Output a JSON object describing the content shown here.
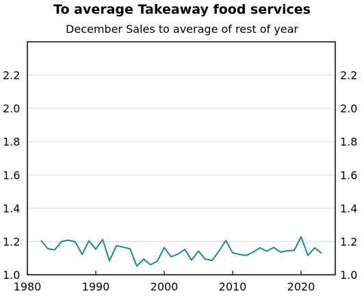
{
  "chart_data": {
    "type": "line",
    "title": "To average Takeaway food services",
    "subtitle": "December Sales to average of rest of year",
    "xlabel": "",
    "ylabel": "",
    "xlim": [
      1980,
      2025
    ],
    "ylim": [
      1.0,
      2.4
    ],
    "xticks": [
      1980,
      1990,
      2000,
      2010,
      2020
    ],
    "yticks": [
      1.0,
      1.2,
      1.4,
      1.6,
      1.8,
      2.0,
      2.2
    ],
    "ytick_labels": [
      "1.0",
      "1.2",
      "1.4",
      "1.6",
      "1.8",
      "2.0",
      "2.2"
    ],
    "grid": "horizontal",
    "right_axis": true,
    "line_color": "#1a8a86",
    "series": [
      {
        "x": [
          1982,
          1983,
          1984,
          1985,
          1986,
          1987,
          1988,
          1989,
          1990,
          1991,
          1992,
          1993,
          1994,
          1995,
          1996,
          1997,
          1998,
          1999,
          2000,
          2001,
          2002,
          2003,
          2004,
          2005,
          2006,
          2007,
          2008,
          2009,
          2010,
          2011,
          2012,
          2013,
          2014,
          2015,
          2016,
          2017,
          2018,
          2019,
          2020,
          2021,
          2022,
          2023
        ],
        "values": [
          1.206,
          1.156,
          1.15,
          1.2,
          1.208,
          1.198,
          1.122,
          1.204,
          1.154,
          1.212,
          1.084,
          1.174,
          1.166,
          1.156,
          1.052,
          1.094,
          1.06,
          1.082,
          1.164,
          1.108,
          1.124,
          1.152,
          1.088,
          1.142,
          1.094,
          1.086,
          1.142,
          1.206,
          1.132,
          1.122,
          1.116,
          1.136,
          1.162,
          1.142,
          1.164,
          1.136,
          1.144,
          1.146,
          1.228,
          1.116,
          1.162,
          1.13
        ]
      }
    ]
  }
}
